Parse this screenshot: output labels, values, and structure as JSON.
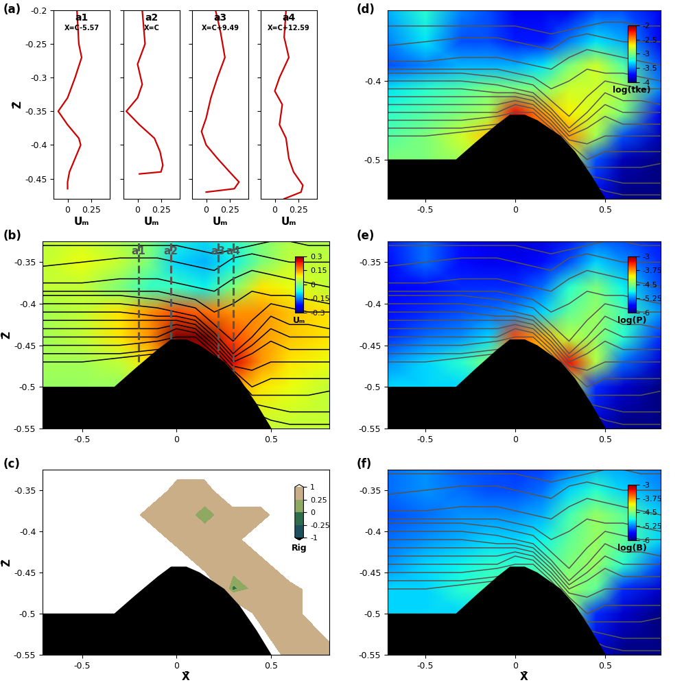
{
  "panel_labels": [
    "(a)",
    "(b)",
    "(c)",
    "(d)",
    "(e)",
    "(f)"
  ],
  "topography": {
    "x": [
      -0.71,
      -0.33,
      -0.22,
      -0.1,
      -0.03,
      0.05,
      0.12,
      0.25,
      0.33,
      0.42,
      0.5
    ],
    "z": [
      -0.5,
      -0.5,
      -0.478,
      -0.455,
      -0.443,
      -0.443,
      -0.45,
      -0.47,
      -0.49,
      -0.52,
      -0.55
    ]
  },
  "isopycnals": {
    "x": [
      -0.71,
      -0.5,
      -0.3,
      -0.1,
      0.0,
      0.1,
      0.2,
      0.3,
      0.4,
      0.5,
      0.6,
      0.7,
      0.81
    ],
    "lines": [
      [
        -0.33,
        -0.33,
        -0.33,
        -0.33,
        -0.33,
        -0.335,
        -0.34,
        -0.335,
        -0.33,
        -0.325,
        -0.325,
        -0.33,
        -0.33
      ],
      [
        -0.355,
        -0.35,
        -0.345,
        -0.345,
        -0.35,
        -0.355,
        -0.36,
        -0.345,
        -0.34,
        -0.345,
        -0.35,
        -0.35,
        -0.35
      ],
      [
        -0.375,
        -0.375,
        -0.37,
        -0.37,
        -0.375,
        -0.38,
        -0.385,
        -0.37,
        -0.36,
        -0.365,
        -0.37,
        -0.375,
        -0.38
      ],
      [
        -0.385,
        -0.385,
        -0.385,
        -0.385,
        -0.39,
        -0.395,
        -0.41,
        -0.4,
        -0.385,
        -0.39,
        -0.39,
        -0.395,
        -0.4
      ],
      [
        -0.39,
        -0.39,
        -0.39,
        -0.395,
        -0.4,
        -0.405,
        -0.425,
        -0.445,
        -0.42,
        -0.4,
        -0.405,
        -0.41,
        -0.41
      ],
      [
        -0.4,
        -0.4,
        -0.4,
        -0.405,
        -0.41,
        -0.415,
        -0.435,
        -0.46,
        -0.44,
        -0.415,
        -0.425,
        -0.425,
        -0.43
      ],
      [
        -0.41,
        -0.41,
        -0.41,
        -0.415,
        -0.415,
        -0.42,
        -0.44,
        -0.465,
        -0.45,
        -0.43,
        -0.44,
        -0.44,
        -0.44
      ],
      [
        -0.42,
        -0.42,
        -0.42,
        -0.42,
        -0.42,
        -0.425,
        -0.445,
        -0.47,
        -0.46,
        -0.445,
        -0.455,
        -0.455,
        -0.455
      ],
      [
        -0.43,
        -0.43,
        -0.43,
        -0.43,
        -0.425,
        -0.43,
        -0.45,
        -0.475,
        -0.48,
        -0.47,
        -0.47,
        -0.47,
        -0.47
      ],
      [
        -0.44,
        -0.44,
        -0.44,
        -0.44,
        -0.43,
        -0.435,
        -0.455,
        -0.48,
        -0.5,
        -0.49,
        -0.49,
        -0.49,
        -0.49
      ],
      [
        -0.45,
        -0.45,
        -0.45,
        -0.445,
        -0.44,
        -0.44,
        -0.46,
        -0.485,
        -0.51,
        -0.51,
        -0.51,
        -0.51,
        -0.505
      ],
      [
        -0.46,
        -0.46,
        -0.46,
        -0.455,
        -0.45,
        -0.45,
        -0.47,
        -0.49,
        -0.52,
        -0.525,
        -0.53,
        -0.53,
        -0.53
      ],
      [
        -0.47,
        -0.47,
        -0.465,
        -0.46,
        -0.45,
        -0.45,
        -0.47,
        -0.49,
        -0.53,
        -0.54,
        -0.545,
        -0.545,
        -0.545
      ]
    ]
  },
  "field_grid": {
    "x": [
      -0.71,
      -0.5,
      -0.3,
      -0.15,
      0.0,
      0.15,
      0.3,
      0.45,
      0.6,
      0.81
    ],
    "z": [
      -0.55,
      -0.5,
      -0.47,
      -0.44,
      -0.41,
      -0.38,
      -0.35,
      -0.31
    ]
  },
  "chart_data": [
    {
      "type": "line",
      "title": "a1",
      "subtitle": "X=C-5.57",
      "x_label": "Uₘ",
      "y_label": "Z̄",
      "color": "#cc0000",
      "x": [
        0.1,
        0.12,
        0.15,
        0.08,
        0.0,
        -0.1,
        0.0,
        0.12,
        0.14,
        0.08,
        0.02,
        0.0,
        0.0
      ],
      "y": [
        -0.2,
        -0.25,
        -0.27,
        -0.3,
        -0.33,
        -0.35,
        -0.37,
        -0.39,
        -0.4,
        -0.42,
        -0.44,
        -0.455,
        -0.465
      ],
      "xlim": [
        -0.15,
        0.45
      ],
      "ylim": [
        -0.48,
        -0.2
      ],
      "xticks": [
        0,
        0.25
      ],
      "yticks": [
        -0.45,
        -0.4,
        -0.35,
        -0.3,
        -0.25,
        -0.2
      ]
    },
    {
      "type": "line",
      "title": "a2",
      "subtitle": "X=C",
      "x_label": "Uₘ",
      "color": "#cc0000",
      "tick_labels": "x",
      "x": [
        0.05,
        0.08,
        0.0,
        0.05,
        0.0,
        -0.12,
        0.02,
        0.18,
        0.24,
        0.27,
        0.25,
        0.02
      ],
      "y": [
        -0.2,
        -0.25,
        -0.28,
        -0.31,
        -0.33,
        -0.35,
        -0.37,
        -0.39,
        -0.41,
        -0.43,
        -0.44,
        -0.443
      ],
      "xlim": [
        -0.15,
        0.45
      ],
      "ylim": [
        -0.48,
        -0.2
      ],
      "xticks": [
        0,
        0.25
      ],
      "yticks": [
        -0.45,
        -0.4,
        -0.35,
        -0.3,
        -0.25,
        -0.2
      ]
    },
    {
      "type": "line",
      "title": "a3",
      "subtitle": "X=C+9.49",
      "x_label": "Uₘ",
      "color": "#cc0000",
      "tick_labels": "x",
      "x": [
        0.1,
        0.15,
        0.2,
        0.12,
        0.05,
        0.0,
        -0.05,
        0.0,
        0.12,
        0.25,
        0.35,
        0.3,
        0.0
      ],
      "y": [
        -0.2,
        -0.23,
        -0.27,
        -0.3,
        -0.33,
        -0.36,
        -0.38,
        -0.4,
        -0.42,
        -0.44,
        -0.455,
        -0.465,
        -0.47
      ],
      "xlim": [
        -0.15,
        0.45
      ],
      "ylim": [
        -0.48,
        -0.2
      ],
      "xticks": [
        0,
        0.25
      ],
      "yticks": [
        -0.45,
        -0.4,
        -0.35,
        -0.3,
        -0.25,
        -0.2
      ]
    },
    {
      "type": "line",
      "title": "a4",
      "subtitle": "X=C+12.59",
      "x_label": "Uₘ",
      "color": "#cc0000",
      "tick_labels": "x",
      "x": [
        0.12,
        0.1,
        0.15,
        0.05,
        0.0,
        0.08,
        0.05,
        0.12,
        0.15,
        0.2,
        0.3,
        0.28,
        0.1
      ],
      "y": [
        -0.2,
        -0.24,
        -0.27,
        -0.3,
        -0.32,
        -0.34,
        -0.37,
        -0.39,
        -0.42,
        -0.44,
        -0.46,
        -0.47,
        -0.48
      ],
      "xlim": [
        -0.15,
        0.45
      ],
      "ylim": [
        -0.48,
        -0.2
      ],
      "xticks": [
        0,
        0.25
      ],
      "yticks": [
        -0.45,
        -0.4,
        -0.35,
        -0.3,
        -0.25,
        -0.2
      ]
    },
    {
      "type": "heatmap",
      "y_label": "Z̄",
      "colorbar_label": "Uₘ",
      "color": "#000000",
      "xlim": [
        -0.71,
        0.81
      ],
      "ylim": [
        -0.55,
        -0.325
      ],
      "xticks": [
        -0.5,
        0,
        0.5
      ],
      "yticks": [
        -0.55,
        -0.5,
        -0.45,
        -0.4,
        -0.35
      ],
      "color_range": [
        -0.3,
        0.3
      ],
      "color_ticks": [
        -0.3,
        -0.15,
        0,
        0.15,
        0.3
      ],
      "profile_marks": [
        {
          "label": "a1",
          "x": -0.2
        },
        {
          "label": "a2",
          "x": -0.03
        },
        {
          "label": "a3",
          "x": 0.22
        },
        {
          "label": "a4",
          "x": 0.3
        }
      ],
      "cells": [
        [
          0,
          0,
          0,
          0,
          0,
          0,
          0.05,
          0.05,
          0.05,
          0.05
        ],
        [
          0.02,
          0.02,
          0.02,
          0.05,
          0.1,
          0.15,
          0.15,
          0.1,
          0.08,
          0.05
        ],
        [
          0.03,
          0.03,
          0.05,
          0.1,
          0.2,
          0.28,
          0.25,
          0.15,
          0.1,
          0.08
        ],
        [
          0.03,
          0.05,
          0.1,
          0.15,
          0.3,
          0.3,
          0.2,
          0.15,
          0.12,
          0.1
        ],
        [
          0.03,
          0.05,
          0.1,
          0.15,
          0.2,
          0.18,
          0.15,
          0.15,
          0.12,
          0.1
        ],
        [
          0.05,
          0.05,
          0.0,
          -0.05,
          -0.05,
          -0.08,
          0.0,
          0.1,
          0.08,
          0.05
        ],
        [
          0.05,
          0.08,
          0.05,
          0.0,
          -0.1,
          -0.12,
          -0.08,
          0.0,
          0.05,
          0.05
        ],
        [
          0.05,
          0.05,
          0.03,
          0.0,
          -0.05,
          -0.08,
          -0.05,
          0.0,
          0.03,
          0.03
        ]
      ]
    },
    {
      "type": "filled_contour",
      "x_label": "X̄",
      "y_label": "Z̄",
      "colorbar_label": "Rig",
      "xlim": [
        -0.71,
        0.81
      ],
      "ylim": [
        -0.55,
        -0.325
      ],
      "xticks": [
        -0.5,
        0,
        0.5
      ],
      "yticks": [
        -0.55,
        -0.5,
        -0.45,
        -0.4,
        -0.35
      ],
      "color_levels": [
        -1,
        -0.25,
        0,
        0.25,
        1
      ],
      "color_ticks": [
        -1,
        -0.25,
        0,
        0.25,
        1
      ],
      "colors": [
        "#000000",
        "#1d4f5e",
        "#2f6e4c",
        "#8fa862",
        "#c9ae87",
        "#ffffff"
      ],
      "cells": [
        [
          2,
          2,
          2,
          2,
          2,
          2,
          2,
          2,
          0.5,
          0.5
        ],
        [
          2,
          2,
          2,
          2,
          2,
          2,
          2,
          0.5,
          0.5,
          2
        ],
        [
          2,
          2,
          2,
          2,
          2,
          2,
          -0.1,
          0.5,
          0.5,
          2
        ],
        [
          2,
          2,
          2,
          2,
          2,
          0.5,
          0.5,
          0.5,
          2,
          2
        ],
        [
          2,
          2,
          2,
          2,
          0.5,
          0.5,
          0.5,
          2,
          2,
          2
        ],
        [
          2,
          2,
          2,
          0.5,
          0.5,
          0.1,
          0.5,
          0.5,
          2,
          2
        ],
        [
          2,
          2,
          2,
          2,
          0.5,
          0.5,
          2,
          2,
          2,
          2
        ],
        [
          2,
          2,
          2,
          2,
          2,
          2,
          2,
          2,
          2,
          2
        ]
      ]
    },
    {
      "type": "heatmap",
      "colorbar_label": "log(tke)",
      "color": "#555555",
      "xlim": [
        -0.71,
        0.81
      ],
      "ylim": [
        -0.55,
        -0.31
      ],
      "xticks": [
        -0.5,
        0,
        0.5
      ],
      "yticks": [
        -0.5,
        -0.4
      ],
      "color_range": [
        -4,
        -2
      ],
      "color_ticks": [
        -4,
        -3.5,
        -3,
        -2.5,
        -2
      ],
      "cells": [
        [
          -3.2,
          -3.2,
          -3.0,
          -3.0,
          -3.0,
          -3.0,
          -3.0,
          -3.8,
          -4,
          -4
        ],
        [
          -3.0,
          -3.0,
          -2.9,
          -2.8,
          -2.8,
          -2.8,
          -2.8,
          -3.6,
          -3.9,
          -4
        ],
        [
          -3.1,
          -3.0,
          -2.8,
          -2.6,
          -2.3,
          -2.3,
          -2.5,
          -2.9,
          -3.6,
          -3.9
        ],
        [
          -3.2,
          -3.1,
          -3.0,
          -2.9,
          -2.2,
          -2.5,
          -2.7,
          -2.8,
          -3.0,
          -3.8
        ],
        [
          -3.3,
          -3.2,
          -3.1,
          -3.0,
          -3.0,
          -3.0,
          -2.8,
          -2.8,
          -2.9,
          -3.5
        ],
        [
          -3.6,
          -3.5,
          -3.4,
          -3.4,
          -3.4,
          -3.3,
          -3.0,
          -2.8,
          -3.1,
          -3.6
        ],
        [
          -3.5,
          -3.3,
          -3.6,
          -3.6,
          -3.7,
          -3.7,
          -3.5,
          -3.3,
          -3.4,
          -3.8
        ],
        [
          -3.4,
          -3.2,
          -3.5,
          -3.6,
          -3.8,
          -3.8,
          -3.8,
          -3.6,
          -3.6,
          -3.8
        ]
      ]
    },
    {
      "type": "heatmap",
      "colorbar_label": "log(P)",
      "color": "#555555",
      "xlim": [
        -0.71,
        0.81
      ],
      "ylim": [
        -0.55,
        -0.325
      ],
      "xticks": [
        -0.5,
        0,
        0.5
      ],
      "yticks": [
        -0.55,
        -0.5,
        -0.45,
        -0.4,
        -0.35
      ],
      "color_range": [
        -6,
        -3
      ],
      "color_ticks": [
        -6,
        -5.25,
        -4.5,
        -3.75,
        -3
      ],
      "cells": [
        [
          -5,
          -5,
          -5,
          -5,
          -5,
          -5,
          -5,
          -5.8,
          -6,
          -6
        ],
        [
          -5,
          -5,
          -5,
          -5,
          -5,
          -4.8,
          -4.2,
          -5.5,
          -5.8,
          -6
        ],
        [
          -5.2,
          -5,
          -4.8,
          -4.5,
          -4,
          -3.8,
          -3.3,
          -4.3,
          -5.3,
          -5.8
        ],
        [
          -5.5,
          -5.3,
          -5.2,
          -5,
          -3.5,
          -3.8,
          -4.3,
          -4.4,
          -4.8,
          -5.5
        ],
        [
          -5.6,
          -5.5,
          -5.4,
          -5.3,
          -5.2,
          -5,
          -4.6,
          -4.4,
          -4.7,
          -5.2
        ],
        [
          -5.7,
          -5.6,
          -5.5,
          -5.5,
          -5.5,
          -5.3,
          -4.8,
          -4.5,
          -4.9,
          -5.4
        ],
        [
          -5.6,
          -5.3,
          -5.6,
          -5.7,
          -5.7,
          -5.6,
          -5.4,
          -5,
          -5.2,
          -5.5
        ],
        [
          -5.5,
          -5.3,
          -5.6,
          -5.7,
          -5.8,
          -5.8,
          -5.7,
          -5.5,
          -5.5,
          -5.6
        ]
      ]
    },
    {
      "type": "heatmap",
      "x_label": "X̄",
      "colorbar_label": "log(B)",
      "color": "#555555",
      "xlim": [
        -0.71,
        0.81
      ],
      "ylim": [
        -0.55,
        -0.325
      ],
      "xticks": [
        -0.5,
        0,
        0.5
      ],
      "yticks": [
        -0.55,
        -0.5,
        -0.45,
        -0.4,
        -0.35
      ],
      "color_range": [
        -6,
        -3
      ],
      "color_ticks": [
        -6,
        -5.25,
        -4.5,
        -3.75,
        -3
      ],
      "cells": [
        [
          -5,
          -5,
          -5,
          -5,
          -5,
          -5,
          -5,
          -5.8,
          -6,
          -6
        ],
        [
          -5,
          -5,
          -5,
          -5,
          -5,
          -4.9,
          -4.5,
          -5.5,
          -5.8,
          -6
        ],
        [
          -5,
          -5,
          -4.8,
          -4.7,
          -4.6,
          -4.6,
          -4.4,
          -4.6,
          -5.5,
          -5.8
        ],
        [
          -5.2,
          -5,
          -4.9,
          -4.8,
          -4.8,
          -4.7,
          -4.5,
          -4.4,
          -4.8,
          -5.4
        ],
        [
          -5.3,
          -5.2,
          -5.1,
          -5,
          -5,
          -4.9,
          -4.6,
          -4.4,
          -4.6,
          -5
        ],
        [
          -5.4,
          -5.3,
          -5.2,
          -5.2,
          -5.2,
          -5.1,
          -4.7,
          -4.4,
          -4.6,
          -5
        ],
        [
          -5.3,
          -5.2,
          -5.3,
          -5.4,
          -5.4,
          -5.3,
          -5,
          -4.8,
          -5,
          -5.2
        ],
        [
          -5.3,
          -5.2,
          -5.4,
          -5.4,
          -5.5,
          -5.5,
          -5.4,
          -5.2,
          -5.2,
          -5.3
        ]
      ]
    }
  ]
}
